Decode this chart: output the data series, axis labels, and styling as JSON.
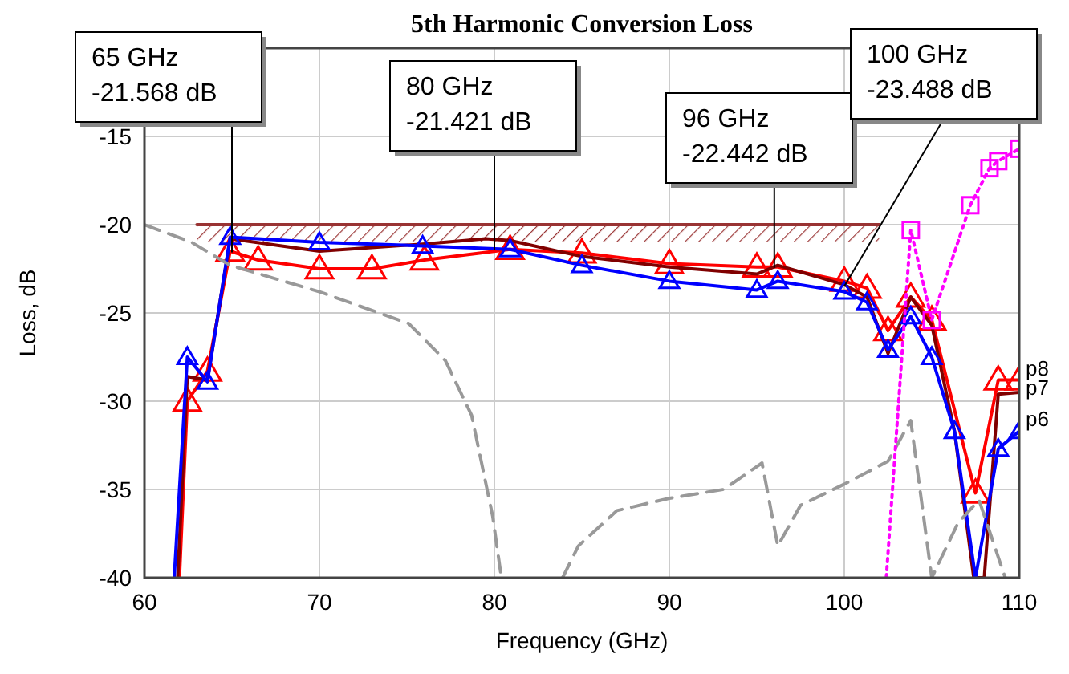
{
  "chart_data": {
    "type": "line",
    "title": "5th Harmonic Conversion Loss",
    "xlabel": "Frequency (GHz)",
    "ylabel": "Loss, dB",
    "xlim": [
      60,
      110
    ],
    "xticks": [
      60,
      70,
      80,
      90,
      100,
      110
    ],
    "ylim": [
      -40,
      -10
    ],
    "yticks": [
      -40,
      -35,
      -30,
      -25,
      -20,
      -15
    ],
    "grid": true,
    "line_style": "solid",
    "series": [
      {
        "color": "#993333",
        "x": [
          63,
          102
        ],
        "values": [
          -20,
          -20
        ],
        "lower": [
          -21,
          -21
        ],
        "upper": [
          -20,
          -20
        ],
        "marker": "none"
      },
      {
        "name": "p8",
        "color": "#ff0000",
        "marker": "triangle",
        "x": [
          62,
          62.45,
          63.6,
          64.9,
          66.5,
          70,
          73,
          76,
          80.9,
          85,
          90,
          95,
          96.2,
          100,
          101.3,
          102.5,
          103.8,
          105,
          107.5,
          108.8,
          110
        ],
        "values": [
          -40,
          -30,
          -28.3,
          -21.5,
          -22,
          -22.5,
          -22.5,
          -22,
          -21.4,
          -21.6,
          -22.2,
          -22.4,
          -22.4,
          -23.2,
          -23.6,
          -26,
          -24.1,
          -25.4,
          -35.2,
          -28.8,
          -28.8
        ]
      },
      {
        "name": "p7",
        "color": "#800000",
        "marker": "none",
        "x": [
          61.9,
          62.45,
          63.6,
          64.9,
          68.5,
          70,
          75.9,
          79.5,
          80.9,
          85,
          90,
          95,
          96.2,
          100,
          101.3,
          102.5,
          103.8,
          105,
          106.3,
          107.4,
          108,
          108.8,
          110
        ],
        "values": [
          -40,
          -28.6,
          -28.8,
          -20.8,
          -21.3,
          -21.5,
          -21.1,
          -20.8,
          -20.9,
          -21.8,
          -22.4,
          -22.8,
          -22.3,
          -23.4,
          -24.1,
          -27.3,
          -24.1,
          -25.7,
          -31.7,
          -40,
          -40,
          -29.6,
          -29.5
        ]
      },
      {
        "name": "p6",
        "color": "#0000ff",
        "marker": "triangle",
        "x": [
          61.7,
          62.45,
          63.6,
          64.9,
          70,
          75.9,
          80.9,
          85,
          90,
          95,
          96.2,
          100,
          101.3,
          102.5,
          103.8,
          105,
          106.3,
          107.5,
          108.8,
          110
        ],
        "values": [
          -40,
          -27.5,
          -28.9,
          -20.7,
          -21,
          -21.2,
          -21.4,
          -22.3,
          -23.2,
          -23.7,
          -23.2,
          -23.8,
          -24.4,
          -27.1,
          -25.2,
          -27.5,
          -31.7,
          -40,
          -32.7,
          -31.7
        ]
      },
      {
        "color": "#999999",
        "marker": "none",
        "line_style": "dashed",
        "x": [
          60,
          62.7,
          64.9,
          70,
          75.1,
          77.2,
          78.7,
          79.9,
          80.4,
          82,
          83.9,
          84.8,
          87,
          90,
          93.1,
          95.3,
          96.2,
          97.5,
          100,
          102.5,
          103.8,
          105,
          106.5,
          107.7,
          109.2
        ],
        "values": [
          -20,
          -21,
          -22.3,
          -23.8,
          -25.6,
          -27.7,
          -30.8,
          -36.5,
          -40,
          null,
          -40,
          -38.2,
          -36.2,
          -35.5,
          -35,
          -33.5,
          -38.2,
          -35.9,
          -34.7,
          -33.4,
          -31.1,
          -40,
          -36.9,
          -35.6,
          -40
        ]
      },
      {
        "color": "#ff00ff",
        "marker": "square",
        "line_style": "dotted",
        "x": [
          102.4,
          103.8,
          105,
          107.2,
          108.3,
          108.8,
          110
        ],
        "values": [
          -40,
          -20.3,
          -25.4,
          -18.9,
          -16.8,
          -16.4,
          -15.7
        ]
      }
    ],
    "annotations": [
      {
        "text": "65 GHz\n-21.568 dB",
        "x": 65,
        "y": -21.568
      },
      {
        "text": "80 GHz\n-21.421 dB",
        "x": 80,
        "y": -21.421
      },
      {
        "text": "96 GHz\n-22.442 dB",
        "x": 96,
        "y": -22.442
      },
      {
        "text": "100 GHz\n-23.488 dB",
        "x": 100,
        "y": -23.488
      }
    ]
  }
}
